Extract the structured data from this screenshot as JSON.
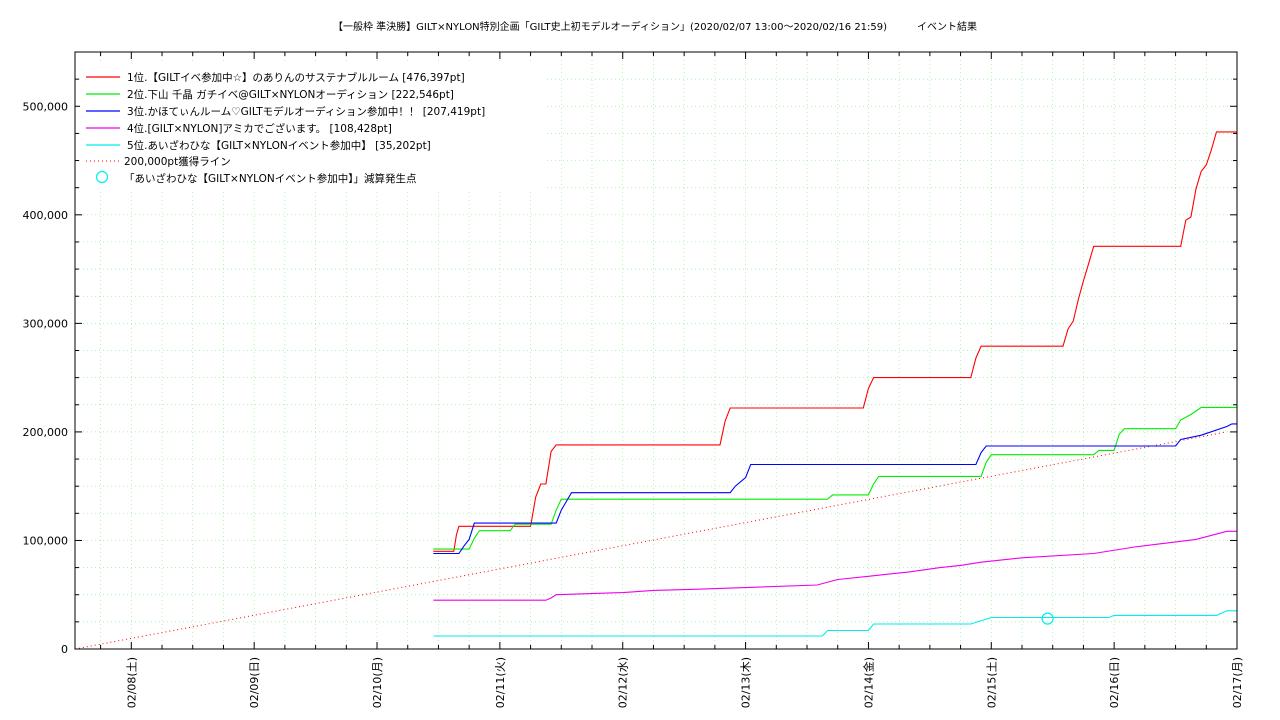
{
  "chart_data": {
    "type": "line",
    "title": "【一般枠 準決勝】GILT×NYLON特別企画「GILT史上初モデルオーディション」(2020/02/07 13:00～2020/02/16 21:59)　　　イベント結果",
    "xlabel": "",
    "ylabel": "",
    "x_range": [
      "2020-02-07 13:00",
      "2020-02-17 00:00"
    ],
    "ylim": [
      0,
      550000
    ],
    "yticks": [
      0,
      100000,
      200000,
      300000,
      400000,
      500000
    ],
    "ytick_labels": [
      "0",
      "100,000",
      "200,000",
      "300,000",
      "400,000",
      "500,000"
    ],
    "xticks": [
      "2020-02-08",
      "2020-02-09",
      "2020-02-10",
      "2020-02-11",
      "2020-02-12",
      "2020-02-13",
      "2020-02-14",
      "2020-02-15",
      "2020-02-16",
      "2020-02-17"
    ],
    "xtick_labels": [
      "02/08(土)",
      "02/09(日)",
      "02/10(月)",
      "02/11(火)",
      "02/12(水)",
      "02/13(木)",
      "02/14(金)",
      "02/15(土)",
      "02/16(日)",
      "02/17(月)"
    ],
    "grid": true,
    "legend_position": "top-left",
    "series": [
      {
        "name": "1位.【GILTイベ参加中☆】のありんのサステナブルルーム [476,397pt]",
        "color": "#ff0000",
        "points": [
          [
            "2020-02-10 11:00",
            90000
          ],
          [
            "2020-02-10 15:00",
            90000
          ],
          [
            "2020-02-10 15:30",
            105000
          ],
          [
            "2020-02-10 16:00",
            113000
          ],
          [
            "2020-02-11 06:00",
            113000
          ],
          [
            "2020-02-11 07:00",
            140000
          ],
          [
            "2020-02-11 08:00",
            152000
          ],
          [
            "2020-02-11 09:00",
            152000
          ],
          [
            "2020-02-11 10:00",
            182000
          ],
          [
            "2020-02-11 11:00",
            188000
          ],
          [
            "2020-02-12 19:00",
            188000
          ],
          [
            "2020-02-12 20:00",
            210000
          ],
          [
            "2020-02-12 21:00",
            222000
          ],
          [
            "2020-02-13 23:00",
            222000
          ],
          [
            "2020-02-14 00:00",
            240000
          ],
          [
            "2020-02-14 01:00",
            250000
          ],
          [
            "2020-02-14 20:00",
            250000
          ],
          [
            "2020-02-14 21:00",
            268000
          ],
          [
            "2020-02-14 22:00",
            279000
          ],
          [
            "2020-02-15 14:00",
            279000
          ],
          [
            "2020-02-15 15:00",
            295000
          ],
          [
            "2020-02-15 16:00",
            302000
          ],
          [
            "2020-02-15 17:00",
            322000
          ],
          [
            "2020-02-15 18:00",
            339000
          ],
          [
            "2020-02-15 19:00",
            355000
          ],
          [
            "2020-02-15 20:00",
            371000
          ],
          [
            "2020-02-16 13:00",
            371000
          ],
          [
            "2020-02-16 14:00",
            395000
          ],
          [
            "2020-02-16 15:00",
            398000
          ],
          [
            "2020-02-16 16:00",
            424000
          ],
          [
            "2020-02-16 17:00",
            440000
          ],
          [
            "2020-02-16 18:00",
            446000
          ],
          [
            "2020-02-16 19:00",
            460000
          ],
          [
            "2020-02-16 20:00",
            476397
          ],
          [
            "2020-02-17 00:00",
            476397
          ]
        ]
      },
      {
        "name": "2位.下山 千晶 ガチイベ@GILT×NYLONオーディション [222,546pt]",
        "color": "#00ee00",
        "points": [
          [
            "2020-02-10 11:00",
            92000
          ],
          [
            "2020-02-10 18:00",
            92000
          ],
          [
            "2020-02-10 19:00",
            102000
          ],
          [
            "2020-02-10 20:00",
            109000
          ],
          [
            "2020-02-11 02:00",
            109000
          ],
          [
            "2020-02-11 03:00",
            115000
          ],
          [
            "2020-02-11 10:00",
            115000
          ],
          [
            "2020-02-11 11:00",
            128000
          ],
          [
            "2020-02-11 12:00",
            138000
          ],
          [
            "2020-02-13 16:00",
            138000
          ],
          [
            "2020-02-13 17:00",
            142000
          ],
          [
            "2020-02-14 00:00",
            142000
          ],
          [
            "2020-02-14 01:00",
            152000
          ],
          [
            "2020-02-14 02:00",
            159000
          ],
          [
            "2020-02-14 22:00",
            159000
          ],
          [
            "2020-02-14 23:00",
            172000
          ],
          [
            "2020-02-15 00:00",
            179000
          ],
          [
            "2020-02-15 20:00",
            179000
          ],
          [
            "2020-02-15 21:00",
            183000
          ],
          [
            "2020-02-16 00:00",
            183000
          ],
          [
            "2020-02-16 01:00",
            198000
          ],
          [
            "2020-02-16 02:00",
            203000
          ],
          [
            "2020-02-16 12:00",
            203000
          ],
          [
            "2020-02-16 13:00",
            211000
          ],
          [
            "2020-02-16 15:00",
            216000
          ],
          [
            "2020-02-16 17:00",
            222546
          ],
          [
            "2020-02-17 00:00",
            222546
          ]
        ]
      },
      {
        "name": "3位.かほてぃんルーム♡GILTモデルオーディション参加中！！ [207,419pt]",
        "color": "#0000ff",
        "points": [
          [
            "2020-02-10 11:00",
            88000
          ],
          [
            "2020-02-10 16:00",
            88000
          ],
          [
            "2020-02-10 17:00",
            95000
          ],
          [
            "2020-02-10 18:00",
            101000
          ],
          [
            "2020-02-10 19:00",
            116000
          ],
          [
            "2020-02-11 11:00",
            116000
          ],
          [
            "2020-02-11 12:00",
            128000
          ],
          [
            "2020-02-11 13:00",
            136000
          ],
          [
            "2020-02-11 14:00",
            144000
          ],
          [
            "2020-02-12 21:00",
            144000
          ],
          [
            "2020-02-12 22:00",
            150000
          ],
          [
            "2020-02-13 00:00",
            158000
          ],
          [
            "2020-02-13 01:00",
            170000
          ],
          [
            "2020-02-14 21:00",
            170000
          ],
          [
            "2020-02-14 22:00",
            181000
          ],
          [
            "2020-02-14 23:00",
            187000
          ],
          [
            "2020-02-16 12:00",
            187000
          ],
          [
            "2020-02-16 13:00",
            193000
          ],
          [
            "2020-02-16 17:00",
            197000
          ],
          [
            "2020-02-16 22:00",
            205000
          ],
          [
            "2020-02-16 23:00",
            207419
          ],
          [
            "2020-02-17 00:00",
            207419
          ]
        ]
      },
      {
        "name": "4位.[GILT×NYLON]アミカでございます。 [108,428pt]",
        "color": "#ee00ee",
        "points": [
          [
            "2020-02-10 11:00",
            45000
          ],
          [
            "2020-02-11 09:00",
            45000
          ],
          [
            "2020-02-11 10:00",
            47000
          ],
          [
            "2020-02-11 11:00",
            50000
          ],
          [
            "2020-02-12 00:00",
            52000
          ],
          [
            "2020-02-12 06:00",
            54000
          ],
          [
            "2020-02-12 14:00",
            55000
          ],
          [
            "2020-02-13 14:00",
            59000
          ],
          [
            "2020-02-13 18:00",
            64000
          ],
          [
            "2020-02-14 00:00",
            67000
          ],
          [
            "2020-02-14 08:00",
            71000
          ],
          [
            "2020-02-14 14:00",
            75000
          ],
          [
            "2020-02-14 18:00",
            77000
          ],
          [
            "2020-02-14 22:00",
            80000
          ],
          [
            "2020-02-15 06:00",
            84000
          ],
          [
            "2020-02-15 20:00",
            88000
          ],
          [
            "2020-02-16 04:00",
            94000
          ],
          [
            "2020-02-16 16:00",
            101000
          ],
          [
            "2020-02-16 22:00",
            108428
          ],
          [
            "2020-02-17 00:00",
            108428
          ]
        ]
      },
      {
        "name": "5位.あいざわひな【GILT×NYLONイベント参加中】 [35,202pt]",
        "color": "#00eeee",
        "points": [
          [
            "2020-02-10 11:00",
            12000
          ],
          [
            "2020-02-13 15:00",
            12000
          ],
          [
            "2020-02-13 16:00",
            17000
          ],
          [
            "2020-02-14 00:00",
            17000
          ],
          [
            "2020-02-14 01:00",
            23000
          ],
          [
            "2020-02-14 20:00",
            23000
          ],
          [
            "2020-02-15 00:00",
            29000
          ],
          [
            "2020-02-15 23:00",
            29000
          ],
          [
            "2020-02-16 00:00",
            31000
          ],
          [
            "2020-02-16 20:00",
            31000
          ],
          [
            "2020-02-16 22:00",
            35202
          ],
          [
            "2020-02-17 00:00",
            35202
          ]
        ]
      }
    ],
    "reference_line": {
      "name": "200,000pt獲得ライン",
      "color": "#ff0000",
      "points": [
        [
          "2020-02-07 13:00",
          0
        ],
        [
          "2020-02-16 22:00",
          200000
        ]
      ]
    },
    "marker": {
      "name": "「あいざわひな【GILT×NYLONイベント参加中】」減算発生点",
      "color": "#00eeee",
      "x": "2020-02-15 11:00",
      "y": 28000
    }
  }
}
